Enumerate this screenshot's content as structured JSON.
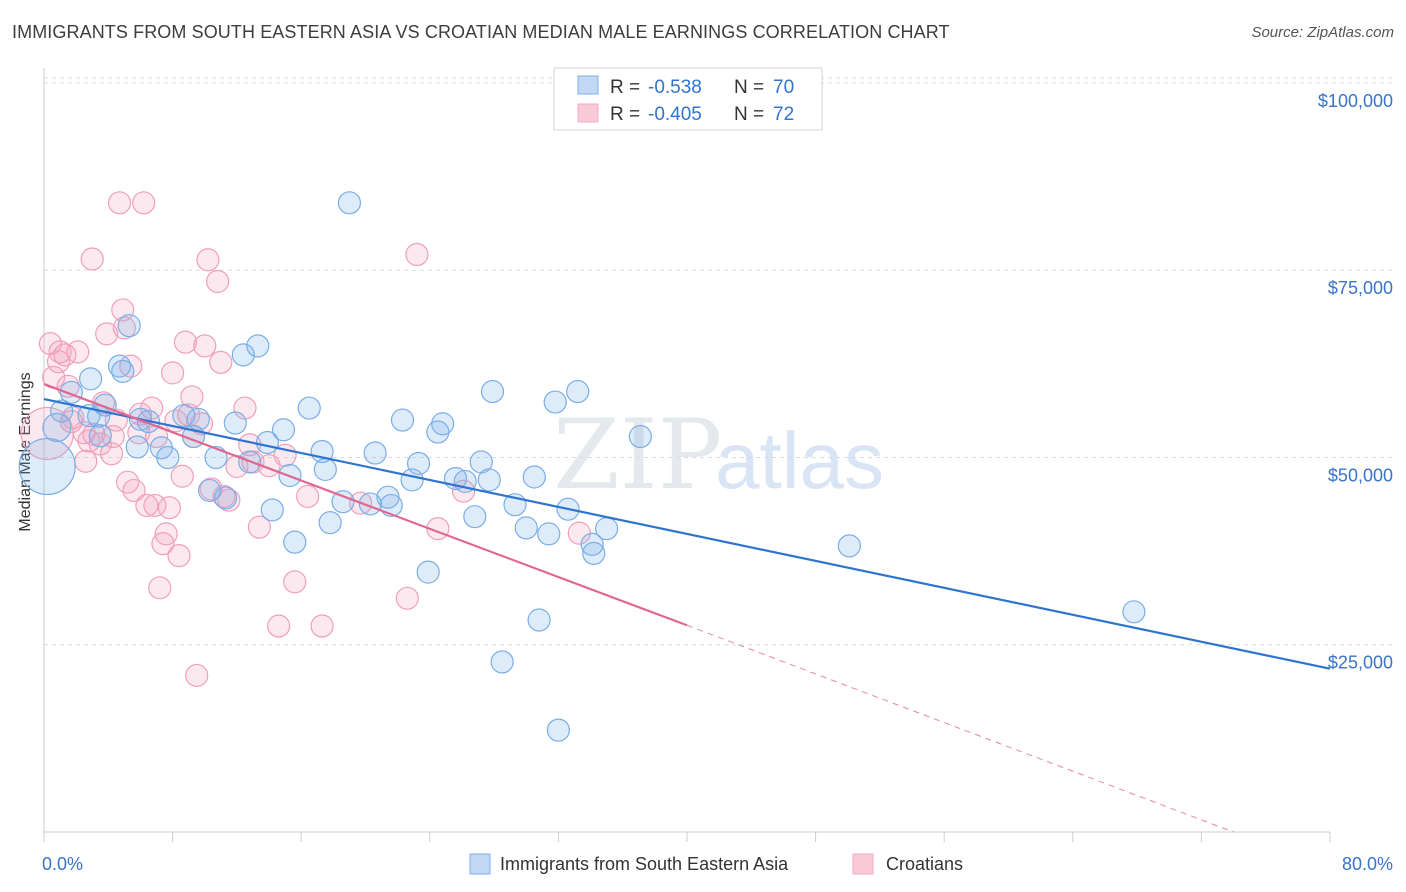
{
  "title": "IMMIGRANTS FROM SOUTH EASTERN ASIA VS CROATIAN MEDIAN MALE EARNINGS CORRELATION CHART",
  "source": "Source: ZipAtlas.com",
  "watermark": {
    "zip": "ZIP",
    "atlas": "atlas"
  },
  "colors": {
    "blue": "#7aaee8",
    "blue_line": "#2f74d0",
    "pink": "#f4a9c0",
    "pink_line": "#e06890",
    "tick_label": "#3a74c8",
    "grid": "#d9dde3"
  },
  "legend": {
    "rows": [
      {
        "r_label": "R =",
        "r_value": "-0.538",
        "n_label": "N =",
        "n_value": "70"
      },
      {
        "r_label": "R =",
        "r_value": "-0.405",
        "n_label": "N =",
        "n_value": "72"
      }
    ]
  },
  "bottom_legend": [
    "Immigrants from South Eastern Asia",
    "Croatians"
  ],
  "chart_data": {
    "type": "scatter",
    "title": "IMMIGRANTS FROM SOUTH EASTERN ASIA VS CROATIAN MEDIAN MALE EARNINGS CORRELATION CHART",
    "xlabel": "",
    "ylabel": "Median Male Earnings",
    "xlim": [
      0,
      80
    ],
    "ylim": [
      0,
      102000
    ],
    "x_tick_labels": [
      "0.0%",
      "80.0%"
    ],
    "y_ticks": [
      25000,
      50000,
      75000,
      100000
    ],
    "y_tick_labels": [
      "$25,000",
      "$50,000",
      "$75,000",
      "$100,000"
    ],
    "grid": true,
    "legend_position": "top-center",
    "series": [
      {
        "name": "Immigrants from South Eastern Asia",
        "color": "#7aaee8",
        "trend": {
          "x": [
            0,
            80
          ],
          "y": [
            57800,
            21800
          ]
        },
        "points": [
          [
            0.2,
            48800,
            28
          ],
          [
            0.8,
            54000,
            14
          ],
          [
            1.1,
            56200,
            11
          ],
          [
            1.7,
            58700,
            11
          ],
          [
            2.9,
            60500,
            11
          ],
          [
            3.5,
            52900,
            11
          ],
          [
            3.8,
            57000,
            11
          ],
          [
            3.4,
            55500,
            11
          ],
          [
            4.7,
            62200,
            11
          ],
          [
            4.9,
            61500,
            11
          ],
          [
            5.3,
            67600,
            11
          ],
          [
            6.0,
            55100,
            11
          ],
          [
            5.8,
            51400,
            11
          ],
          [
            6.5,
            54800,
            11
          ],
          [
            7.3,
            51300,
            11
          ],
          [
            7.7,
            50000,
            11
          ],
          [
            8.7,
            55600,
            11
          ],
          [
            9.3,
            52800,
            11
          ],
          [
            9.6,
            55100,
            11
          ],
          [
            10.3,
            45600,
            11
          ],
          [
            10.7,
            50000,
            11
          ],
          [
            11.3,
            44600,
            11
          ],
          [
            11.9,
            54600,
            11
          ],
          [
            12.4,
            63700,
            11
          ],
          [
            12.8,
            49400,
            11
          ],
          [
            13.3,
            64900,
            11
          ],
          [
            13.9,
            52000,
            11
          ],
          [
            14.2,
            43000,
            11
          ],
          [
            14.9,
            53700,
            11
          ],
          [
            15.3,
            47600,
            11
          ],
          [
            15.6,
            38700,
            11
          ],
          [
            16.5,
            56600,
            11
          ],
          [
            17.3,
            50800,
            11
          ],
          [
            17.5,
            48400,
            11
          ],
          [
            17.8,
            41300,
            11
          ],
          [
            18.6,
            44100,
            11
          ],
          [
            19.0,
            84000,
            11
          ],
          [
            20.3,
            43800,
            11
          ],
          [
            20.6,
            50600,
            11
          ],
          [
            21.4,
            44700,
            11
          ],
          [
            21.6,
            43600,
            11
          ],
          [
            22.3,
            55000,
            11
          ],
          [
            22.9,
            47000,
            11
          ],
          [
            23.3,
            49200,
            11
          ],
          [
            23.9,
            34700,
            11
          ],
          [
            24.5,
            53400,
            11
          ],
          [
            24.8,
            54500,
            11
          ],
          [
            25.6,
            47200,
            11
          ],
          [
            26.2,
            46800,
            11
          ],
          [
            26.8,
            42100,
            11
          ],
          [
            27.2,
            49400,
            11
          ],
          [
            27.7,
            47000,
            11
          ],
          [
            27.9,
            58800,
            11
          ],
          [
            28.5,
            22700,
            11
          ],
          [
            29.3,
            43700,
            11
          ],
          [
            30.0,
            40600,
            11
          ],
          [
            30.5,
            47400,
            11
          ],
          [
            30.8,
            28300,
            11
          ],
          [
            31.4,
            39800,
            11
          ],
          [
            31.8,
            57400,
            11
          ],
          [
            32.0,
            13600,
            11
          ],
          [
            32.6,
            43100,
            11
          ],
          [
            33.2,
            58800,
            11
          ],
          [
            34.1,
            38400,
            11
          ],
          [
            34.2,
            37200,
            11
          ],
          [
            35.0,
            40500,
            11
          ],
          [
            37.1,
            52800,
            11
          ],
          [
            50.1,
            38200,
            11
          ],
          [
            67.8,
            29400,
            11
          ],
          [
            2.8,
            55600,
            11
          ]
        ]
      },
      {
        "name": "Croatians",
        "color": "#f4a9c0",
        "trend": {
          "x": [
            0,
            40
          ],
          "y": [
            59800,
            27600
          ]
        },
        "trend_dashed": {
          "x": [
            40,
            74
          ],
          "y": [
            27600,
            0
          ]
        },
        "points": [
          [
            0.2,
            53200,
            26
          ],
          [
            0.4,
            65200,
            11
          ],
          [
            0.6,
            60700,
            11
          ],
          [
            0.9,
            62800,
            11
          ],
          [
            1.0,
            64100,
            11
          ],
          [
            1.3,
            63700,
            11
          ],
          [
            1.5,
            59500,
            11
          ],
          [
            1.8,
            55300,
            11
          ],
          [
            2.1,
            64100,
            11
          ],
          [
            2.5,
            53300,
            11
          ],
          [
            2.6,
            49500,
            11
          ],
          [
            2.8,
            52200,
            11
          ],
          [
            3.0,
            76500,
            11
          ],
          [
            3.1,
            53100,
            11
          ],
          [
            3.5,
            51800,
            11
          ],
          [
            3.7,
            57300,
            11
          ],
          [
            3.9,
            66500,
            11
          ],
          [
            4.2,
            50500,
            11
          ],
          [
            4.3,
            52800,
            11
          ],
          [
            4.5,
            55000,
            11
          ],
          [
            4.7,
            84000,
            11
          ],
          [
            4.9,
            69700,
            11
          ],
          [
            5.0,
            67300,
            11
          ],
          [
            5.2,
            46700,
            11
          ],
          [
            5.4,
            62200,
            11
          ],
          [
            5.6,
            45600,
            11
          ],
          [
            5.9,
            53300,
            11
          ],
          [
            6.0,
            55800,
            11
          ],
          [
            6.2,
            84000,
            11
          ],
          [
            6.4,
            43600,
            11
          ],
          [
            6.7,
            56600,
            11
          ],
          [
            6.9,
            43600,
            11
          ],
          [
            7.0,
            52800,
            11
          ],
          [
            7.2,
            32600,
            11
          ],
          [
            7.4,
            38500,
            11
          ],
          [
            7.6,
            39800,
            11
          ],
          [
            7.8,
            43300,
            11
          ],
          [
            8.0,
            61300,
            11
          ],
          [
            8.2,
            54900,
            11
          ],
          [
            8.4,
            36900,
            11
          ],
          [
            8.6,
            47500,
            11
          ],
          [
            8.8,
            65400,
            11
          ],
          [
            9.0,
            55700,
            11
          ],
          [
            9.2,
            58100,
            11
          ],
          [
            9.3,
            52800,
            11
          ],
          [
            9.5,
            20900,
            11
          ],
          [
            9.8,
            54500,
            11
          ],
          [
            10.0,
            64900,
            11
          ],
          [
            10.2,
            76400,
            11
          ],
          [
            10.4,
            45800,
            11
          ],
          [
            10.8,
            73500,
            11
          ],
          [
            11.0,
            62700,
            11
          ],
          [
            11.2,
            44800,
            11
          ],
          [
            11.5,
            44300,
            11
          ],
          [
            12.0,
            48800,
            11
          ],
          [
            12.5,
            56600,
            11
          ],
          [
            12.8,
            51700,
            11
          ],
          [
            13.0,
            49400,
            11
          ],
          [
            13.4,
            40700,
            11
          ],
          [
            14.0,
            48900,
            11
          ],
          [
            14.6,
            27500,
            11
          ],
          [
            15.0,
            50300,
            11
          ],
          [
            15.6,
            33400,
            11
          ],
          [
            16.4,
            44800,
            11
          ],
          [
            17.3,
            27500,
            11
          ],
          [
            19.7,
            43900,
            11
          ],
          [
            22.6,
            31200,
            11
          ],
          [
            23.2,
            77100,
            11
          ],
          [
            24.5,
            40500,
            11
          ],
          [
            26.1,
            45500,
            11
          ],
          [
            33.3,
            39900,
            11
          ],
          [
            1.7,
            54800,
            11
          ]
        ]
      }
    ]
  }
}
